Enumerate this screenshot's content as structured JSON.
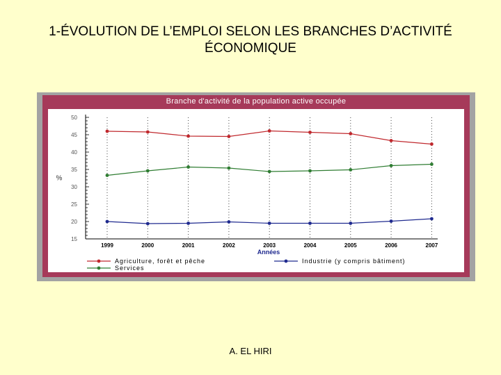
{
  "slide": {
    "title_line1": "1-ÉVOLUTION DE L’EMPLOI SELON LES BRANCHES D’ACTIVITÉ",
    "title_line2": "ÉCONOMIQUE",
    "footer": "A. EL HIRI"
  },
  "chart_data": {
    "type": "line",
    "title": "Branche d'activité de la population active occupée",
    "xlabel": "Années",
    "ylabel": "%",
    "categories": [
      "1999",
      "2000",
      "2001",
      "2002",
      "2003",
      "2004",
      "2005",
      "2006",
      "2007"
    ],
    "ylim": [
      15,
      50
    ],
    "yticks": [
      15,
      20,
      25,
      30,
      35,
      40,
      45,
      50
    ],
    "grid": "vertical dotted",
    "legend_position": "bottom",
    "series": [
      {
        "name": "Agriculture, forêt et pêche",
        "color": "#c0282d",
        "values": [
          46.0,
          45.8,
          44.6,
          44.5,
          46.1,
          45.7,
          45.3,
          43.3,
          42.3
        ]
      },
      {
        "name": "Industrie (y compris bâtiment)",
        "color": "#1f2a8f",
        "values": [
          20.0,
          19.4,
          19.5,
          19.9,
          19.5,
          19.5,
          19.5,
          20.1,
          20.8
        ]
      },
      {
        "name": "Services",
        "color": "#2f7d32",
        "values": [
          33.3,
          34.6,
          35.7,
          35.4,
          34.4,
          34.6,
          34.9,
          36.1,
          36.5
        ]
      }
    ]
  }
}
